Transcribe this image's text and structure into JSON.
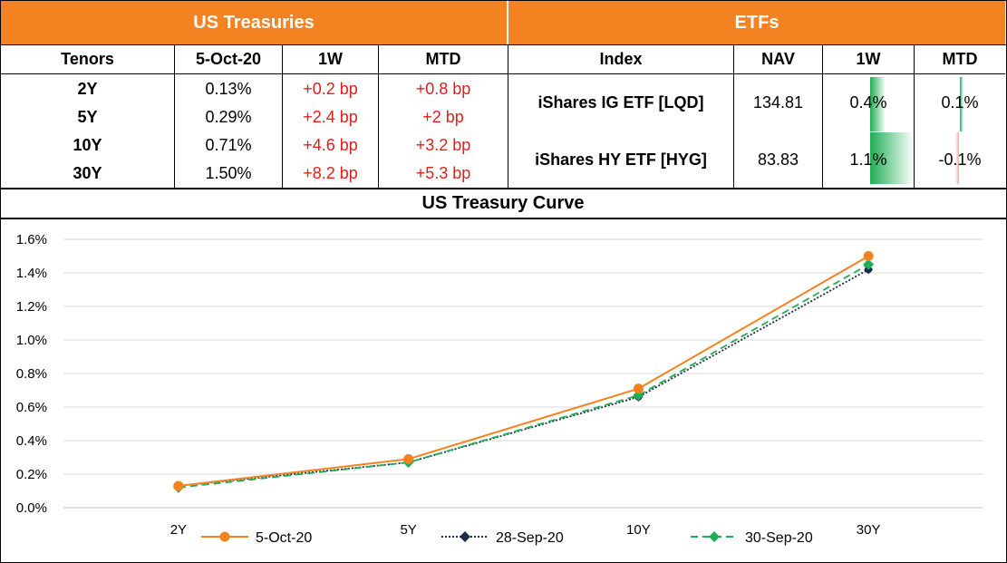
{
  "treasuries": {
    "title": "US Treasuries",
    "headers": [
      "Tenors",
      "5-Oct-20",
      "1W",
      "MTD"
    ],
    "rows": [
      {
        "tenor": "2Y",
        "yield": "0.13%",
        "w1": "+0.2 bp",
        "mtd": "+0.8 bp"
      },
      {
        "tenor": "5Y",
        "yield": "0.29%",
        "w1": "+2.4 bp",
        "mtd": "+2 bp"
      },
      {
        "tenor": "10Y",
        "yield": "0.71%",
        "w1": "+4.6 bp",
        "mtd": "+3.2 bp"
      },
      {
        "tenor": "30Y",
        "yield": "1.50%",
        "w1": "+8.2 bp",
        "mtd": "+5.3 bp"
      }
    ]
  },
  "etfs": {
    "title": "ETFs",
    "headers": [
      "Index",
      "NAV",
      "1W",
      "MTD"
    ],
    "rows": [
      {
        "index": "iShares IG ETF [LQD]",
        "nav": "134.81",
        "w1": "0.4%",
        "mtd": "0.1%",
        "w1_value": 0.4,
        "mtd_value": 0.1
      },
      {
        "index": "iShares HY ETF [HYG]",
        "nav": "83.83",
        "w1": "1.1%",
        "mtd": "-0.1%",
        "w1_value": 1.1,
        "mtd_value": -0.1
      }
    ],
    "bar_colors": {
      "positive": "#1fae55",
      "negative": "#f4a6a6"
    }
  },
  "chart_data": {
    "type": "line",
    "title": "US Treasury Curve",
    "categories": [
      "2Y",
      "5Y",
      "10Y",
      "30Y"
    ],
    "ylim": [
      0,
      1.6
    ],
    "yticks": [
      "0.0%",
      "0.2%",
      "0.4%",
      "0.6%",
      "0.8%",
      "1.0%",
      "1.2%",
      "1.4%",
      "1.6%"
    ],
    "grid": true,
    "legend_position": "bottom",
    "series": [
      {
        "name": "5-Oct-20",
        "values": [
          0.13,
          0.29,
          0.71,
          1.5
        ],
        "color": "#f58220",
        "style": "solid"
      },
      {
        "name": "28-Sep-20",
        "values": [
          0.13,
          0.27,
          0.66,
          1.42
        ],
        "color": "#1f2a44",
        "style": "dotted"
      },
      {
        "name": "30-Sep-20",
        "values": [
          0.12,
          0.27,
          0.67,
          1.45
        ],
        "color": "#1fae55",
        "style": "dashed"
      }
    ]
  }
}
